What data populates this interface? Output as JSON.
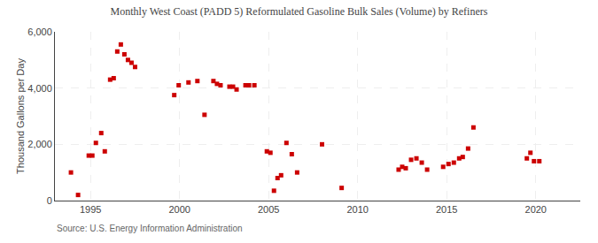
{
  "chart_data": {
    "type": "scatter",
    "title": "Monthly West Coast (PADD 5) Reformulated Gasoline Bulk Sales (Volume) by Refiners",
    "ylabel": "Thousand Gallons per Day",
    "annotations": [
      {
        "text": "Source: U.S. Energy Information Administration"
      }
    ],
    "color": "#cc0000",
    "marker": "square",
    "grid": true,
    "xlim": [
      1993.0,
      2022.5
    ],
    "xticks": [
      1995,
      2000,
      2005,
      2010,
      2015,
      2020
    ],
    "ylim": [
      0,
      6000
    ],
    "yticks": [
      0,
      {
        "value": 2000,
        "label": "2,000"
      },
      {
        "value": 4000,
        "label": "4,000"
      },
      {
        "value": 6000,
        "label": "6,000"
      }
    ],
    "x": [
      1993.9,
      1994.3,
      1994.9,
      1995.1,
      1995.3,
      1995.6,
      1995.8,
      1996.1,
      1996.3,
      1996.5,
      1996.7,
      1996.9,
      1997.1,
      1997.3,
      1997.5,
      1999.7,
      1999.95,
      2000.5,
      2001.0,
      2001.4,
      2001.9,
      2002.1,
      2002.3,
      2002.8,
      2003.0,
      2003.2,
      2003.7,
      2003.9,
      2004.2,
      2004.9,
      2005.1,
      2005.3,
      2005.5,
      2005.7,
      2006.0,
      2006.3,
      2006.6,
      2009.1,
      2008.0,
      2012.3,
      2012.5,
      2012.7,
      2013.0,
      2013.3,
      2013.6,
      2013.9,
      2014.8,
      2015.1,
      2015.4,
      2015.7,
      2015.9,
      2016.2,
      2016.5,
      2019.5,
      2019.7,
      2019.9,
      2020.2
    ],
    "values": [
      1000,
      200,
      1600,
      1600,
      2050,
      2400,
      1750,
      4300,
      4350,
      5300,
      5550,
      5200,
      5000,
      4900,
      4750,
      3750,
      4100,
      4200,
      4250,
      3050,
      4250,
      4150,
      4100,
      4050,
      4050,
      3950,
      4100,
      4100,
      4100,
      1750,
      1700,
      350,
      800,
      900,
      2050,
      1650,
      1000,
      450,
      2000,
      1100,
      1200,
      1150,
      1450,
      1500,
      1350,
      1100,
      1200,
      1300,
      1350,
      1500,
      1550,
      1850,
      2600,
      1500,
      1700,
      1400,
      1400
    ]
  }
}
